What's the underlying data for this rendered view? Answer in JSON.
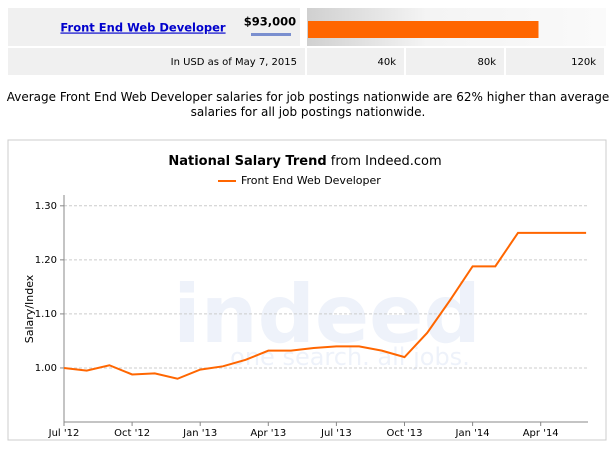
{
  "salary_bar": {
    "title": "Front End Web Developer",
    "label": "$93,000",
    "value": 93000,
    "color": "#ff6600",
    "xlim": [
      0,
      120000
    ],
    "xticks": [
      {
        "value": 40000,
        "label": "40k"
      },
      {
        "value": 80000,
        "label": "80k"
      },
      {
        "value": 120000,
        "label": "120k"
      }
    ],
    "note": "In USD as of May 7, 2015"
  },
  "summary": "Average Front End Web Developer salaries for job postings nationwide are 62% higher than average salaries for all job postings nationwide.",
  "chart_data": {
    "type": "line",
    "title": "National Salary Trend",
    "title_suffix": "from Indeed.com",
    "ylabel": "Salary/Index",
    "categories": [
      "Jul '12",
      null,
      null,
      "Oct '12",
      null,
      null,
      "Jan '13",
      null,
      null,
      "Apr '13",
      null,
      null,
      "Jul '13",
      null,
      null,
      "Oct '13",
      null,
      null,
      "Jan '14",
      null,
      null,
      "Apr '14",
      null,
      null
    ],
    "series": [
      {
        "name": "Front End Web Developer",
        "color": "#ff6600",
        "values": [
          1.0,
          0.995,
          1.005,
          0.988,
          0.99,
          0.98,
          0.997,
          1.003,
          1.015,
          1.032,
          1.032,
          1.037,
          1.04,
          1.04,
          1.032,
          1.02,
          1.065,
          1.125,
          1.188,
          1.188,
          1.25,
          1.25,
          1.25,
          1.25
        ]
      }
    ],
    "ylim": [
      0.9,
      1.32
    ],
    "yticks": [
      {
        "value": 1.0,
        "label": "1.00"
      },
      {
        "value": 1.1,
        "label": "1.10"
      },
      {
        "value": 1.2,
        "label": "1.20"
      },
      {
        "value": 1.3,
        "label": "1.30"
      }
    ],
    "grid": true,
    "watermark": "indeed",
    "watermark_tagline": "one search. all jobs."
  }
}
